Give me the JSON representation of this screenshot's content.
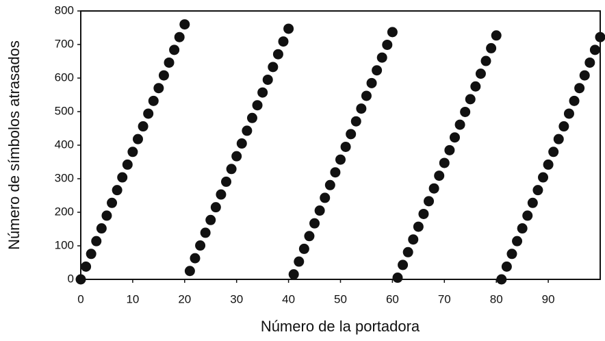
{
  "chart_data": {
    "type": "scatter",
    "xlabel": "Número de la portadora",
    "ylabel": "Número de símbolos atrasados",
    "color": "#111111",
    "xlim": [
      0,
      100
    ],
    "ylim": [
      0,
      800
    ],
    "xticks": [
      0,
      10,
      20,
      30,
      40,
      50,
      60,
      70,
      80,
      90
    ],
    "yticks": [
      0,
      100,
      200,
      300,
      400,
      500,
      600,
      700,
      800
    ],
    "x": [
      0,
      1,
      2,
      3,
      4,
      5,
      6,
      7,
      8,
      9,
      10,
      11,
      12,
      13,
      14,
      15,
      16,
      17,
      18,
      19,
      20,
      21,
      22,
      23,
      24,
      25,
      26,
      27,
      28,
      29,
      30,
      31,
      32,
      33,
      34,
      35,
      36,
      37,
      38,
      39,
      40,
      41,
      42,
      43,
      44,
      45,
      46,
      47,
      48,
      49,
      50,
      51,
      52,
      53,
      54,
      55,
      56,
      57,
      58,
      59,
      60,
      61,
      62,
      63,
      64,
      65,
      66,
      67,
      68,
      69,
      70,
      71,
      72,
      73,
      74,
      75,
      76,
      77,
      78,
      79,
      80,
      81,
      82,
      83,
      84,
      85,
      86,
      87,
      88,
      89,
      90,
      91,
      92,
      93,
      94,
      95,
      96,
      97,
      98,
      99,
      100
    ],
    "values": [
      0,
      38,
      76,
      114,
      152,
      190,
      228,
      266,
      304,
      342,
      380,
      418,
      456,
      494,
      532,
      570,
      608,
      646,
      684,
      722,
      760,
      25,
      63,
      101,
      139,
      177,
      215,
      253,
      291,
      329,
      367,
      405,
      443,
      481,
      519,
      557,
      595,
      633,
      671,
      709,
      747,
      15,
      53,
      91,
      129,
      167,
      205,
      243,
      281,
      319,
      357,
      395,
      433,
      471,
      509,
      547,
      585,
      623,
      661,
      699,
      737,
      5,
      43,
      81,
      119,
      157,
      195,
      233,
      271,
      309,
      347,
      385,
      423,
      461,
      499,
      537,
      575,
      613,
      651,
      689,
      727,
      0,
      38,
      76,
      114,
      152,
      190,
      228,
      266,
      304,
      342,
      380,
      418,
      456,
      494,
      532,
      570,
      608,
      646,
      684,
      722
    ]
  }
}
